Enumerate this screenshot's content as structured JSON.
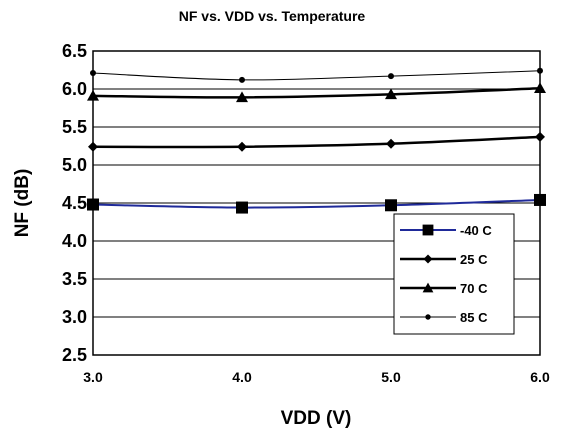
{
  "chart_data": {
    "type": "line",
    "title": "NF vs. VDD vs. Temperature",
    "xlabel": "VDD (V)",
    "ylabel": "NF (dB)",
    "x": [
      3.0,
      4.0,
      5.0,
      6.0
    ],
    "x_tick_labels": [
      "3.0",
      "4.0",
      "5.0",
      "6.0"
    ],
    "xlim": [
      3.0,
      6.0
    ],
    "ylim": [
      2.5,
      6.5
    ],
    "y_tick_labels": [
      "2.5",
      "3.0",
      "3.5",
      "4.0",
      "4.5",
      "5.0",
      "5.5",
      "6.0",
      "6.5"
    ],
    "grid": "horizontal",
    "legend_position": "bottom-right",
    "series": [
      {
        "name": "-40 C",
        "values": [
          4.48,
          4.44,
          4.47,
          4.54
        ],
        "marker": "square",
        "color": "#1f2a9a",
        "marker_color": "#000000"
      },
      {
        "name": "25 C",
        "values": [
          5.24,
          5.24,
          5.28,
          5.37
        ],
        "marker": "diamond",
        "color": "#000000",
        "marker_color": "#000000"
      },
      {
        "name": "70 C",
        "values": [
          5.91,
          5.89,
          5.93,
          6.01
        ],
        "marker": "triangle",
        "color": "#000000",
        "marker_color": "#000000"
      },
      {
        "name": "85 C",
        "values": [
          6.21,
          6.12,
          6.17,
          6.24
        ],
        "marker": "circle",
        "color": "#000000",
        "marker_color": "#000000"
      }
    ]
  }
}
